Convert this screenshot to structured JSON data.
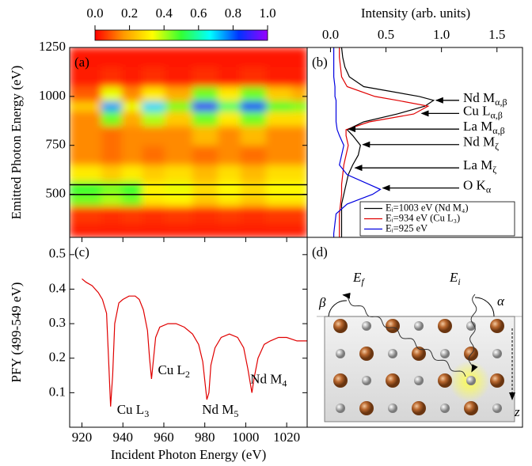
{
  "chart_data": [
    {
      "type": "heatmap",
      "panel_label": "(a)",
      "ylabel": "Emitted Photon Energy (eV)",
      "xlim": [
        914,
        1030
      ],
      "ylim": [
        280,
        1250
      ],
      "yticks": [
        500,
        750,
        1000,
        1250
      ],
      "x": [
        925,
        934,
        945,
        954,
        967,
        981,
        992,
        1003,
        1017,
        1028
      ],
      "y": [
        300,
        400,
        480,
        530,
        600,
        700,
        800,
        900,
        950,
        1000,
        1100,
        1200
      ],
      "z": [
        [
          0.03,
          0.03,
          0.03,
          0.03,
          0.03,
          0.03,
          0.03,
          0.03,
          0.03,
          0.03
        ],
        [
          0.06,
          0.05,
          0.06,
          0.05,
          0.06,
          0.05,
          0.06,
          0.05,
          0.06,
          0.06
        ],
        [
          0.45,
          0.4,
          0.45,
          0.3,
          0.32,
          0.25,
          0.3,
          0.25,
          0.3,
          0.3
        ],
        [
          0.5,
          0.45,
          0.5,
          0.32,
          0.35,
          0.28,
          0.33,
          0.28,
          0.33,
          0.33
        ],
        [
          0.3,
          0.25,
          0.3,
          0.25,
          0.28,
          0.22,
          0.28,
          0.22,
          0.28,
          0.28
        ],
        [
          0.15,
          0.12,
          0.15,
          0.12,
          0.15,
          0.12,
          0.15,
          0.12,
          0.15,
          0.15
        ],
        [
          0.15,
          0.12,
          0.15,
          0.15,
          0.15,
          0.22,
          0.15,
          0.22,
          0.15,
          0.15
        ],
        [
          0.15,
          0.45,
          0.2,
          0.4,
          0.25,
          0.45,
          0.3,
          0.45,
          0.28,
          0.28
        ],
        [
          0.25,
          0.75,
          0.35,
          0.7,
          0.45,
          0.9,
          0.55,
          0.85,
          0.5,
          0.45
        ],
        [
          0.1,
          0.35,
          0.15,
          0.3,
          0.2,
          0.45,
          0.3,
          0.45,
          0.25,
          0.2
        ],
        [
          0.03,
          0.05,
          0.03,
          0.05,
          0.03,
          0.05,
          0.03,
          0.05,
          0.03,
          0.03
        ],
        [
          0.02,
          0.02,
          0.02,
          0.02,
          0.02,
          0.02,
          0.02,
          0.02,
          0.02,
          0.02
        ]
      ],
      "colormap": [
        "#ff0000",
        "#ff9900",
        "#ffff00",
        "#33ff33",
        "#00ffff",
        "#0033ff",
        "#9900ff"
      ],
      "clim": [
        0,
        1
      ],
      "colorbar_ticks": [
        {
          "value": 0,
          "label": "0.0"
        },
        {
          "value": 0.2,
          "label": "0.2"
        },
        {
          "value": 0.4,
          "label": "0.4"
        },
        {
          "value": 0.6,
          "label": "0.6"
        },
        {
          "value": 0.8,
          "label": "0.8"
        },
        {
          "value": 1,
          "label": "1.0"
        }
      ],
      "hlines": [
        499,
        549
      ],
      "hline_color": "#000000"
    },
    {
      "type": "line",
      "orientation": "horizontal",
      "panel_label": "(b)",
      "xlabel": "Intensity (arb. units)",
      "xlim": [
        -0.21,
        1.73
      ],
      "xticks": [
        {
          "value": 0,
          "label": "0.0"
        },
        0.5,
        {
          "value": 1,
          "label": "1.0"
        },
        1.5
      ],
      "ylim": [
        280,
        1250
      ],
      "y": [
        250,
        300,
        400,
        450,
        500,
        525,
        550,
        600,
        650,
        700,
        750,
        800,
        830,
        870,
        910,
        950,
        980,
        1000,
        1050,
        1100,
        1150,
        1200,
        1250
      ],
      "series": [
        {
          "name": "Eᵢ=1003 eV (Nd M₄)",
          "color": "#000000",
          "values": [
            0.1,
            0.1,
            0.1,
            0.1,
            0.12,
            0.13,
            0.14,
            0.16,
            0.2,
            0.25,
            0.27,
            0.2,
            0.15,
            0.3,
            0.6,
            0.85,
            0.93,
            0.8,
            0.3,
            0.17,
            0.13,
            0.11,
            0.1
          ]
        },
        {
          "name": "Eᵢ=934 eV (Cu L₃)",
          "color": "#e00000",
          "values": [
            0.08,
            0.08,
            0.08,
            0.09,
            0.1,
            0.1,
            0.1,
            0.11,
            0.12,
            0.14,
            0.16,
            0.14,
            0.14,
            0.35,
            0.75,
            0.88,
            0.6,
            0.4,
            0.15,
            0.1,
            0.09,
            0.08,
            0.08
          ]
        },
        {
          "name": "Eᵢ=925 eV",
          "color": "#0000e0",
          "values": [
            0.03,
            0.03,
            0.05,
            0.15,
            0.38,
            0.45,
            0.35,
            0.15,
            0.08,
            0.1,
            0.12,
            0.08,
            0.06,
            0.05,
            0.05,
            0.05,
            0.05,
            0.04,
            0.04,
            0.03,
            0.03,
            0.03,
            0.03
          ]
        }
      ],
      "annotations": [
        {
          "text": "Nd M",
          "sub": "α,β",
          "x": 0.93,
          "y": 980
        },
        {
          "text": "Cu L",
          "sub": "α,β",
          "x": 0.8,
          "y": 913
        },
        {
          "text": "La M",
          "sub": "α,β",
          "x": 0.14,
          "y": 833
        },
        {
          "text": "Nd M",
          "sub": "ζ",
          "x": 0.27,
          "y": 754
        },
        {
          "text": "La M",
          "sub": "ζ",
          "x": 0.2,
          "y": 635
        },
        {
          "text": "O K",
          "sub": "α",
          "x": 0.45,
          "y": 532
        }
      ],
      "legend": "lower right"
    },
    {
      "type": "line",
      "panel_label": "(c)",
      "xlabel": "Incident Photon Energy (eV)",
      "ylabel": "PFY (499-549 eV)",
      "xlim": [
        914,
        1030
      ],
      "xticks": [
        920,
        940,
        960,
        980,
        1000,
        1020
      ],
      "ylim": [
        0,
        0.55
      ],
      "yticks": [
        0.1,
        0.2,
        0.3,
        0.4,
        0.5
      ],
      "color": "#e00000",
      "x": [
        920,
        922,
        925,
        928,
        930,
        932,
        933,
        934,
        935,
        936,
        938,
        940,
        943,
        946,
        948,
        950,
        952,
        953,
        954,
        955,
        956,
        958,
        962,
        966,
        970,
        974,
        977,
        979,
        981,
        982,
        983,
        985,
        988,
        992,
        996,
        999,
        1001,
        1003,
        1004,
        1006,
        1009,
        1012,
        1016,
        1020,
        1025,
        1030
      ],
      "values": [
        0.43,
        0.42,
        0.41,
        0.39,
        0.37,
        0.33,
        0.2,
        0.06,
        0.15,
        0.3,
        0.36,
        0.37,
        0.38,
        0.38,
        0.37,
        0.34,
        0.28,
        0.2,
        0.14,
        0.2,
        0.26,
        0.29,
        0.3,
        0.3,
        0.29,
        0.27,
        0.24,
        0.19,
        0.08,
        0.1,
        0.18,
        0.23,
        0.26,
        0.27,
        0.26,
        0.23,
        0.17,
        0.1,
        0.14,
        0.2,
        0.24,
        0.25,
        0.26,
        0.26,
        0.25,
        0.25
      ],
      "annotations": [
        {
          "text": "Cu L",
          "sub": "3",
          "x": 934,
          "y": 0.06
        },
        {
          "text": "Cu L",
          "sub": "2",
          "x": 954,
          "y": 0.14
        },
        {
          "text": "Nd M",
          "sub": "5",
          "x": 981,
          "y": 0.08
        },
        {
          "text": "Nd M",
          "sub": "4",
          "x": 1003,
          "y": 0.1
        }
      ]
    }
  ],
  "diagram": {
    "panel_label": "(d)",
    "e_f": {
      "text": "E",
      "sub": "f"
    },
    "e_i": {
      "text": "E",
      "sub": "i"
    },
    "alpha": "α",
    "beta": "β",
    "z": "z"
  }
}
